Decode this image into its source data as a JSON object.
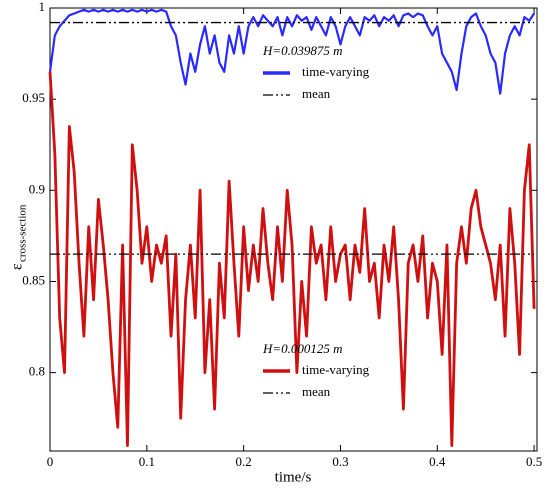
{
  "chart_data": {
    "type": "line",
    "x_label": "time/s",
    "y_label": {
      "symbol": "ε",
      "subscript": "cross-section"
    },
    "xlim": [
      0,
      0.503
    ],
    "ylim": [
      0.757,
      1
    ],
    "xticks": [
      0,
      0.1,
      0.2,
      0.3,
      0.4,
      0.5
    ],
    "yticks": [
      0.8,
      0.85,
      0.9,
      0.95,
      1
    ],
    "grid": false,
    "legends": [
      {
        "title": "H=0.039875 m",
        "series": [
          0,
          1
        ]
      },
      {
        "title": "H=0.000125 m",
        "series": [
          2,
          3
        ]
      }
    ],
    "series": [
      {
        "name": "time-varying",
        "color": "#2a2aff",
        "style": "solid",
        "x": [
          0,
          0.005,
          0.01,
          0.015,
          0.02,
          0.025,
          0.03,
          0.035,
          0.04,
          0.045,
          0.05,
          0.055,
          0.06,
          0.065,
          0.07,
          0.075,
          0.08,
          0.085,
          0.09,
          0.095,
          0.1,
          0.105,
          0.11,
          0.115,
          0.12,
          0.125,
          0.13,
          0.135,
          0.14,
          0.145,
          0.15,
          0.155,
          0.16,
          0.165,
          0.17,
          0.175,
          0.18,
          0.185,
          0.19,
          0.195,
          0.2,
          0.205,
          0.21,
          0.215,
          0.22,
          0.225,
          0.23,
          0.235,
          0.24,
          0.245,
          0.25,
          0.255,
          0.26,
          0.265,
          0.27,
          0.275,
          0.28,
          0.285,
          0.29,
          0.295,
          0.3,
          0.305,
          0.31,
          0.315,
          0.32,
          0.325,
          0.33,
          0.335,
          0.34,
          0.345,
          0.35,
          0.355,
          0.36,
          0.365,
          0.37,
          0.375,
          0.38,
          0.385,
          0.39,
          0.395,
          0.4,
          0.405,
          0.41,
          0.415,
          0.42,
          0.425,
          0.43,
          0.435,
          0.44,
          0.445,
          0.45,
          0.455,
          0.46,
          0.465,
          0.47,
          0.475,
          0.48,
          0.485,
          0.49,
          0.495,
          0.5
        ],
        "values": [
          0.965,
          0.985,
          0.99,
          0.993,
          0.996,
          0.997,
          0.998,
          0.999,
          0.998,
          0.999,
          0.998,
          0.999,
          0.998,
          0.999,
          0.998,
          0.999,
          0.998,
          0.999,
          0.998,
          0.999,
          0.998,
          0.999,
          0.998,
          0.999,
          0.998,
          0.99,
          0.985,
          0.97,
          0.958,
          0.975,
          0.965,
          0.98,
          0.99,
          0.975,
          0.985,
          0.97,
          0.965,
          0.985,
          0.975,
          0.99,
          0.975,
          0.99,
          0.995,
          0.99,
          0.996,
          0.993,
          0.99,
          0.995,
          0.985,
          0.995,
          0.99,
          0.996,
          0.993,
          0.995,
          0.988,
          0.995,
          0.99,
          0.985,
          0.995,
          0.99,
          0.98,
          0.99,
          0.995,
          0.99,
          0.985,
          0.995,
          0.993,
          0.996,
          0.99,
          0.995,
          0.993,
          0.996,
          0.99,
          0.996,
          0.997,
          0.995,
          0.997,
          0.996,
          0.99,
          0.985,
          0.99,
          0.975,
          0.97,
          0.965,
          0.955,
          0.975,
          0.99,
          0.995,
          0.997,
          0.99,
          0.985,
          0.975,
          0.97,
          0.953,
          0.975,
          0.985,
          0.99,
          0.985,
          0.995,
          0.993,
          0.997
        ]
      },
      {
        "name": "mean",
        "color": "#000000",
        "style": "dash-dot-dot",
        "x": [
          0,
          0.5
        ],
        "values": [
          0.992,
          0.992
        ]
      },
      {
        "name": "time-varying",
        "color": "#d01010",
        "style": "solid",
        "x": [
          0,
          0.005,
          0.01,
          0.015,
          0.02,
          0.025,
          0.03,
          0.035,
          0.04,
          0.045,
          0.05,
          0.055,
          0.06,
          0.065,
          0.07,
          0.075,
          0.08,
          0.085,
          0.09,
          0.095,
          0.1,
          0.105,
          0.11,
          0.115,
          0.12,
          0.125,
          0.13,
          0.135,
          0.14,
          0.145,
          0.15,
          0.155,
          0.16,
          0.165,
          0.17,
          0.175,
          0.18,
          0.185,
          0.19,
          0.195,
          0.2,
          0.205,
          0.21,
          0.215,
          0.22,
          0.225,
          0.23,
          0.235,
          0.24,
          0.245,
          0.25,
          0.255,
          0.26,
          0.265,
          0.27,
          0.275,
          0.28,
          0.285,
          0.29,
          0.295,
          0.3,
          0.305,
          0.31,
          0.315,
          0.32,
          0.325,
          0.33,
          0.335,
          0.34,
          0.345,
          0.35,
          0.355,
          0.36,
          0.365,
          0.37,
          0.375,
          0.38,
          0.385,
          0.39,
          0.395,
          0.4,
          0.405,
          0.41,
          0.415,
          0.42,
          0.425,
          0.43,
          0.435,
          0.44,
          0.445,
          0.45,
          0.455,
          0.46,
          0.465,
          0.47,
          0.475,
          0.48,
          0.485,
          0.49,
          0.495,
          0.5
        ],
        "values": [
          0.965,
          0.92,
          0.83,
          0.8,
          0.935,
          0.91,
          0.86,
          0.82,
          0.88,
          0.84,
          0.895,
          0.87,
          0.84,
          0.8,
          0.77,
          0.87,
          0.76,
          0.925,
          0.9,
          0.86,
          0.88,
          0.85,
          0.87,
          0.86,
          0.875,
          0.82,
          0.865,
          0.775,
          0.84,
          0.87,
          0.83,
          0.9,
          0.8,
          0.84,
          0.78,
          0.86,
          0.83,
          0.905,
          0.86,
          0.82,
          0.88,
          0.845,
          0.87,
          0.85,
          0.89,
          0.86,
          0.84,
          0.88,
          0.85,
          0.9,
          0.87,
          0.8,
          0.85,
          0.82,
          0.88,
          0.86,
          0.87,
          0.84,
          0.88,
          0.85,
          0.865,
          0.87,
          0.84,
          0.87,
          0.855,
          0.89,
          0.85,
          0.86,
          0.83,
          0.87,
          0.85,
          0.88,
          0.84,
          0.78,
          0.86,
          0.87,
          0.85,
          0.875,
          0.83,
          0.86,
          0.85,
          0.81,
          0.87,
          0.76,
          0.86,
          0.88,
          0.86,
          0.89,
          0.9,
          0.88,
          0.87,
          0.86,
          0.84,
          0.87,
          0.82,
          0.89,
          0.86,
          0.81,
          0.9,
          0.925,
          0.835
        ]
      },
      {
        "name": "mean",
        "color": "#000000",
        "style": "dash-dot-dot",
        "x": [
          0,
          0.5
        ],
        "values": [
          0.865,
          0.865
        ]
      }
    ]
  }
}
